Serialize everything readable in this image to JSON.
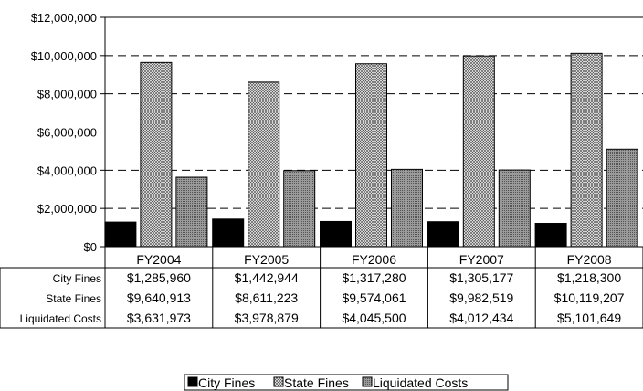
{
  "chart_data": {
    "type": "bar",
    "categories": [
      "FY2004",
      "FY2005",
      "FY2006",
      "FY2007",
      "FY2008"
    ],
    "series": [
      {
        "name": "City Fines",
        "values": [
          1285960,
          1442944,
          1317280,
          1305177,
          1218300
        ]
      },
      {
        "name": "State Fines",
        "values": [
          9640913,
          8611223,
          9574061,
          9982519,
          10119207
        ]
      },
      {
        "name": "Liquidated Costs",
        "values": [
          3631973,
          3978879,
          4045500,
          4012434,
          5101649
        ]
      }
    ],
    "yticks": [
      "$0",
      "$2,000,000",
      "$4,000,000",
      "$6,000,000",
      "$8,000,000",
      "$10,000,000",
      "$12,000,000"
    ],
    "ylim": [
      0,
      12000000
    ],
    "grid": "dashed horizontal",
    "legend": "bottom",
    "data_table": {
      "row_labels": [
        "City Fines",
        "State Fines",
        "Liquidated Costs"
      ],
      "rows": [
        [
          "$1,285,960",
          "$1,442,944",
          "$1,317,280",
          "$1,305,177",
          "$1,218,300"
        ],
        [
          "$9,640,913",
          "$8,611,223",
          "$9,574,061",
          "$9,982,519",
          "$10,119,207"
        ],
        [
          "$3,631,973",
          "$3,978,879",
          "$4,045,500",
          "$4,012,434",
          "$5,101,649"
        ]
      ]
    },
    "colors": {
      "city": "#000000",
      "state_pattern": "fine crosshatch",
      "liquidated": "#7f7f7f"
    }
  }
}
